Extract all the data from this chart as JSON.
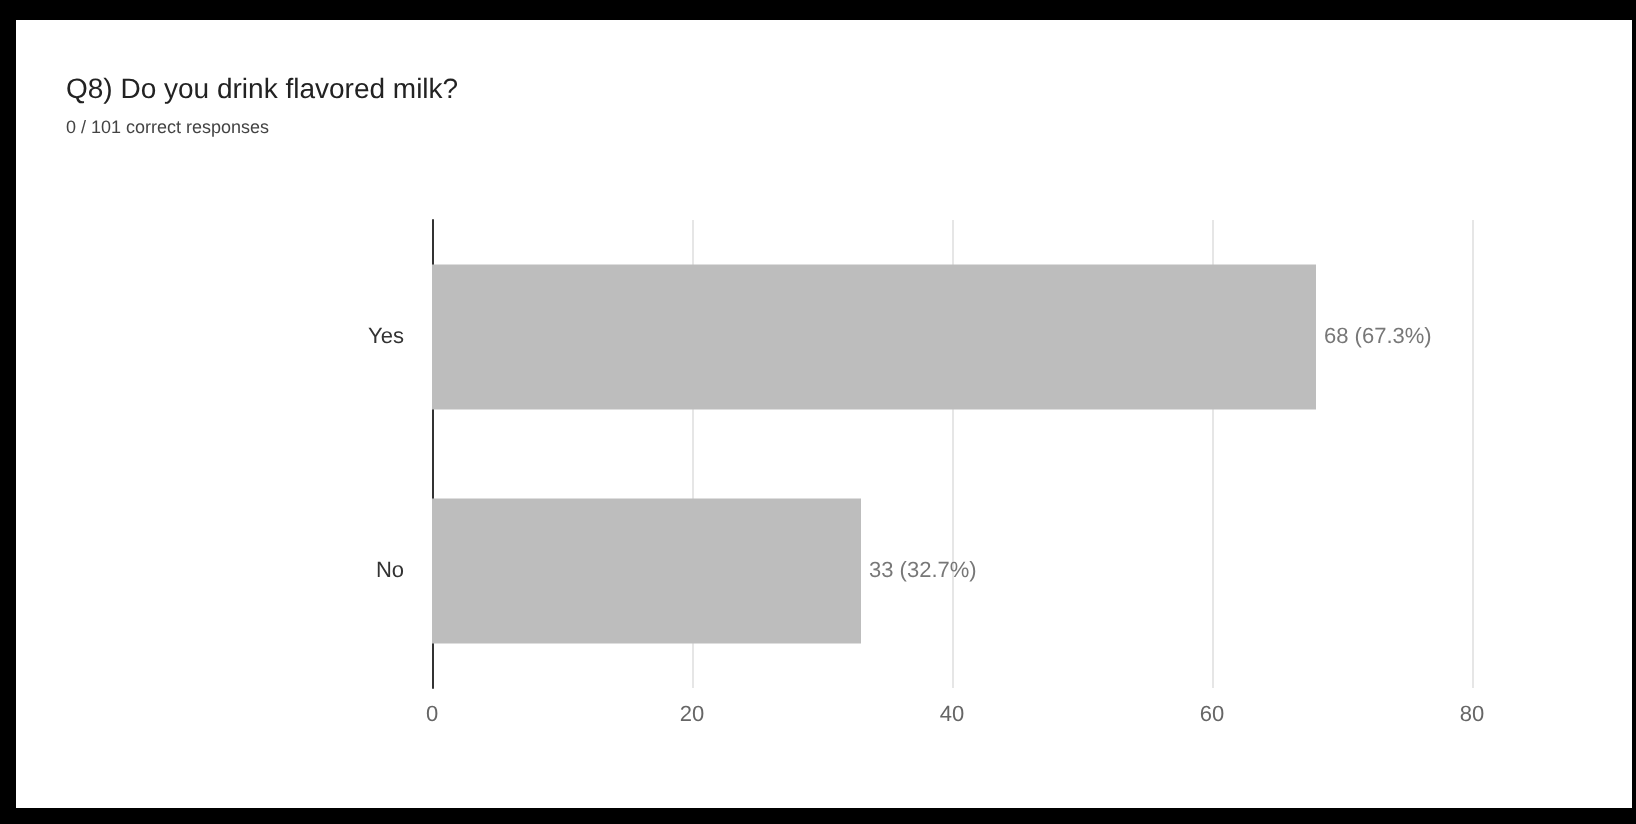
{
  "chart_data": {
    "type": "bar",
    "orientation": "horizontal",
    "title": "Q8) Do you drink flavored milk?",
    "subtitle": "0 / 101 correct responses",
    "categories": [
      "Yes",
      "No"
    ],
    "values": [
      68,
      33
    ],
    "value_labels": [
      "68 (67.3%)",
      "33 (32.7%)"
    ],
    "color": "#bdbdbd",
    "xlim": [
      0,
      80
    ],
    "xticks": [
      0,
      20,
      40,
      60,
      80
    ],
    "grid": "x"
  }
}
